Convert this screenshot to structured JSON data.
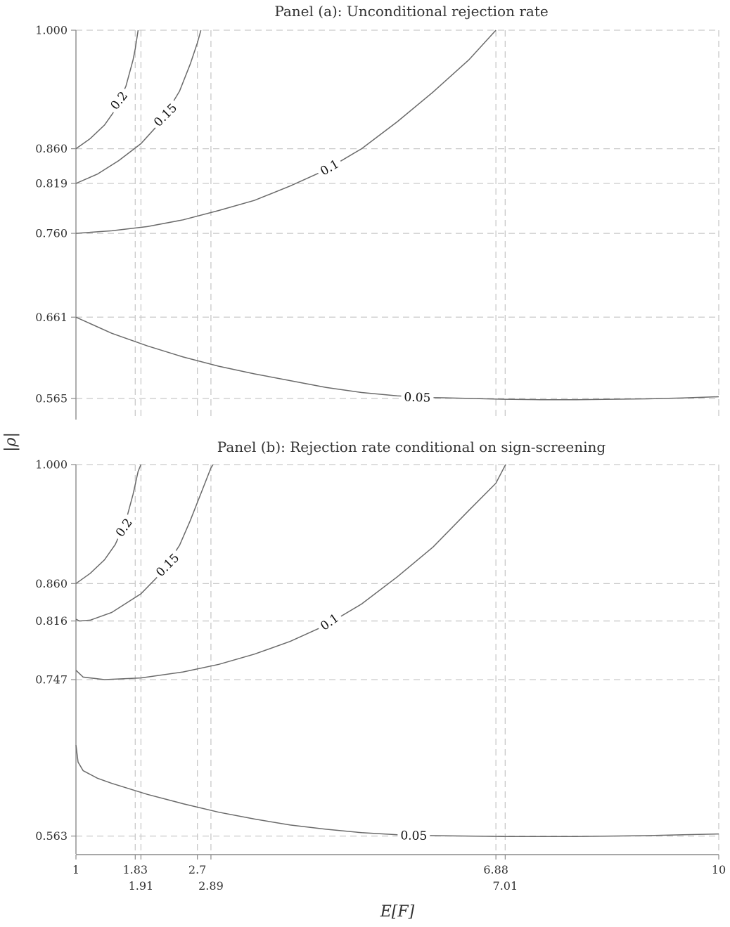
{
  "chart_data": {
    "type": "contour",
    "xlabel": "E[F]",
    "ylabel": "|ρ|",
    "xlim": [
      1,
      10
    ],
    "x_ticks_upper": [
      "1",
      "1.83",
      "2.7",
      "6.88",
      "10"
    ],
    "x_ticks_upper_values": [
      1,
      1.83,
      2.7,
      6.88,
      10
    ],
    "x_ticks_lower": [
      "1.91",
      "2.89",
      "7.01"
    ],
    "x_ticks_lower_values": [
      1.91,
      2.89,
      7.01
    ],
    "grid": true,
    "panels": [
      {
        "id": "a",
        "title": "Panel (a): Unconditional rejection rate",
        "ylim": [
          0.54,
          1.0
        ],
        "y_ticks": [
          "0.565",
          "0.661",
          "0.760",
          "0.819",
          "0.860",
          "1.000"
        ],
        "y_tick_values": [
          0.565,
          0.661,
          0.76,
          0.819,
          0.86,
          1.0
        ],
        "x_grid": [
          1.83,
          1.91,
          2.7,
          2.89,
          6.88,
          7.01,
          10
        ],
        "y_grid": [
          0.565,
          0.661,
          0.76,
          0.819,
          0.86,
          1.0
        ],
        "contours": [
          {
            "level": "0.2",
            "points": [
              [
                1,
                0.86
              ],
              [
                1.2,
                0.872
              ],
              [
                1.4,
                0.888
              ],
              [
                1.55,
                0.906
              ],
              [
                1.7,
                0.934
              ],
              [
                1.8,
                0.965
              ],
              [
                1.83,
                0.978
              ],
              [
                1.87,
                1.0
              ]
            ],
            "label_at": [
              1.6,
              0.917
            ],
            "label_angle": -52
          },
          {
            "level": "0.15",
            "points": [
              [
                1,
                0.819
              ],
              [
                1.3,
                0.83
              ],
              [
                1.6,
                0.846
              ],
              [
                1.91,
                0.866
              ],
              [
                2.2,
                0.893
              ],
              [
                2.45,
                0.928
              ],
              [
                2.6,
                0.96
              ],
              [
                2.7,
                0.985
              ],
              [
                2.75,
                1.0
              ]
            ],
            "label_at": [
              2.25,
              0.9
            ],
            "label_angle": -45
          },
          {
            "level": "0.1",
            "points": [
              [
                1,
                0.76
              ],
              [
                1.5,
                0.763
              ],
              [
                2,
                0.768
              ],
              [
                2.5,
                0.776
              ],
              [
                3,
                0.787
              ],
              [
                3.5,
                0.799
              ],
              [
                4,
                0.816
              ],
              [
                4.5,
                0.835
              ],
              [
                5,
                0.86
              ],
              [
                5.5,
                0.892
              ],
              [
                6,
                0.927
              ],
              [
                6.5,
                0.965
              ],
              [
                6.88,
                1.0
              ]
            ],
            "label_at": [
              4.55,
              0.838
            ],
            "label_angle": -30
          },
          {
            "level": "0.05",
            "points": [
              [
                1,
                0.661
              ],
              [
                1.5,
                0.642
              ],
              [
                2,
                0.627
              ],
              [
                2.5,
                0.614
              ],
              [
                3,
                0.603
              ],
              [
                3.5,
                0.594
              ],
              [
                4,
                0.586
              ],
              [
                4.5,
                0.578
              ],
              [
                5,
                0.572
              ],
              [
                5.5,
                0.568
              ],
              [
                6,
                0.566
              ],
              [
                6.5,
                0.565
              ],
              [
                7,
                0.564
              ],
              [
                7.5,
                0.5635
              ],
              [
                8,
                0.5635
              ],
              [
                8.5,
                0.564
              ],
              [
                9,
                0.5645
              ],
              [
                9.5,
                0.5655
              ],
              [
                10,
                0.567
              ]
            ],
            "label_at": [
              5.78,
              0.5665
            ],
            "label_angle": 2
          }
        ]
      },
      {
        "id": "b",
        "title": "Panel (b): Rejection rate conditional on sign-screening",
        "ylim": [
          0.542,
          1.0
        ],
        "y_ticks": [
          "0.563",
          "0.747",
          "0.816",
          "0.860",
          "1.000"
        ],
        "y_tick_values": [
          0.563,
          0.747,
          0.816,
          0.86,
          1.0
        ],
        "x_grid": [
          1.83,
          1.91,
          2.7,
          2.89,
          6.88,
          7.01,
          10
        ],
        "y_grid": [
          0.563,
          0.747,
          0.816,
          0.86,
          1.0
        ],
        "contours": [
          {
            "level": "0.2",
            "points": [
              [
                1,
                0.86
              ],
              [
                1.2,
                0.872
              ],
              [
                1.4,
                0.888
              ],
              [
                1.55,
                0.906
              ],
              [
                1.7,
                0.934
              ],
              [
                1.8,
                0.965
              ],
              [
                1.87,
                0.992
              ],
              [
                1.91,
                1.0
              ]
            ],
            "label_at": [
              1.67,
              0.926
            ],
            "label_angle": -55
          },
          {
            "level": "0.15",
            "points": [
              [
                1,
                0.818
              ],
              [
                1.05,
                0.816
              ],
              [
                1.2,
                0.817
              ],
              [
                1.5,
                0.826
              ],
              [
                1.91,
                0.848
              ],
              [
                2.2,
                0.873
              ],
              [
                2.45,
                0.905
              ],
              [
                2.6,
                0.934
              ],
              [
                2.75,
                0.966
              ],
              [
                2.89,
                0.996
              ],
              [
                2.92,
                1.0
              ]
            ],
            "label_at": [
              2.28,
              0.882
            ],
            "label_angle": -45
          },
          {
            "level": "0.1",
            "points": [
              [
                1,
                0.758
              ],
              [
                1.1,
                0.75
              ],
              [
                1.4,
                0.747
              ],
              [
                1.91,
                0.749
              ],
              [
                2.5,
                0.756
              ],
              [
                3,
                0.765
              ],
              [
                3.5,
                0.777
              ],
              [
                4,
                0.792
              ],
              [
                4.5,
                0.811
              ],
              [
                5,
                0.836
              ],
              [
                5.5,
                0.868
              ],
              [
                6,
                0.903
              ],
              [
                6.5,
                0.946
              ],
              [
                6.88,
                0.978
              ],
              [
                7.01,
                0.999
              ],
              [
                7.02,
                1.0
              ]
            ],
            "label_at": [
              4.55,
              0.815
            ],
            "label_angle": -35
          },
          {
            "level": "0.05",
            "points": [
              [
                1,
                0.67
              ],
              [
                1.03,
                0.65
              ],
              [
                1.1,
                0.64
              ],
              [
                1.3,
                0.631
              ],
              [
                1.5,
                0.625
              ],
              [
                2,
                0.612
              ],
              [
                2.5,
                0.601
              ],
              [
                3,
                0.591
              ],
              [
                3.5,
                0.583
              ],
              [
                4,
                0.576
              ],
              [
                4.5,
                0.571
              ],
              [
                5,
                0.567
              ],
              [
                5.5,
                0.5645
              ],
              [
                6,
                0.5635
              ],
              [
                6.5,
                0.563
              ],
              [
                7,
                0.5625
              ],
              [
                7.5,
                0.5625
              ],
              [
                8,
                0.5625
              ],
              [
                8.5,
                0.563
              ],
              [
                9,
                0.5635
              ],
              [
                9.5,
                0.5645
              ],
              [
                10,
                0.5655
              ]
            ],
            "label_at": [
              5.73,
              0.5638
            ],
            "label_angle": 1
          }
        ]
      }
    ]
  }
}
